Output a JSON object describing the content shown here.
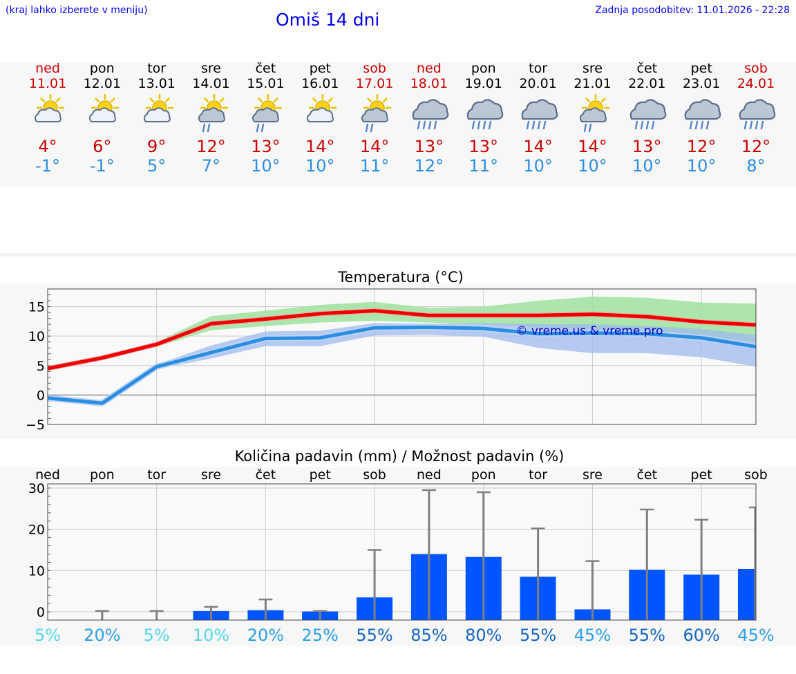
{
  "header": {
    "menu_hint": "(kraj lahko izberete v meniju)",
    "title": "Omiš 14 dni",
    "updated": "Zadnja posodobitev: 11.01.2026 - 22:28"
  },
  "colors": {
    "link": "#0000ee",
    "max_temp": "#cc0000",
    "min_temp": "#2b8de0",
    "max_band": "#9fe39f",
    "min_band": "#9fb9ee",
    "bar": "#0055ff",
    "whisker": "#808080"
  },
  "days": [
    {
      "name": "ned",
      "date": "11.01",
      "weekend": true,
      "icon": "sun-cloud-icon",
      "max": "4°",
      "min": "-1°"
    },
    {
      "name": "pon",
      "date": "12.01",
      "weekend": false,
      "icon": "sun-cloud-icon",
      "max": "6°",
      "min": "-1°"
    },
    {
      "name": "tor",
      "date": "13.01",
      "weekend": false,
      "icon": "sun-cloud-icon",
      "max": "9°",
      "min": "5°"
    },
    {
      "name": "sre",
      "date": "14.01",
      "weekend": false,
      "icon": "sun-cloud-rain-icon",
      "max": "12°",
      "min": "7°"
    },
    {
      "name": "čet",
      "date": "15.01",
      "weekend": false,
      "icon": "sun-cloud-rain-icon",
      "max": "13°",
      "min": "10°"
    },
    {
      "name": "pet",
      "date": "16.01",
      "weekend": false,
      "icon": "sun-cloud-icon",
      "max": "14°",
      "min": "10°"
    },
    {
      "name": "sob",
      "date": "17.01",
      "weekend": true,
      "icon": "sun-cloud-rain-icon",
      "max": "14°",
      "min": "11°"
    },
    {
      "name": "ned",
      "date": "18.01",
      "weekend": true,
      "icon": "rain-cloud-icon",
      "max": "13°",
      "min": "12°"
    },
    {
      "name": "pon",
      "date": "19.01",
      "weekend": false,
      "icon": "rain-cloud-icon",
      "max": "13°",
      "min": "11°"
    },
    {
      "name": "tor",
      "date": "20.01",
      "weekend": false,
      "icon": "rain-cloud-icon",
      "max": "14°",
      "min": "10°"
    },
    {
      "name": "sre",
      "date": "21.01",
      "weekend": false,
      "icon": "sun-cloud-rain-icon",
      "max": "14°",
      "min": "10°"
    },
    {
      "name": "čet",
      "date": "22.01",
      "weekend": false,
      "icon": "rain-cloud-icon",
      "max": "13°",
      "min": "10°"
    },
    {
      "name": "pet",
      "date": "23.01",
      "weekend": false,
      "icon": "rain-cloud-icon",
      "max": "12°",
      "min": "10°"
    },
    {
      "name": "sob",
      "date": "24.01",
      "weekend": true,
      "icon": "rain-cloud-icon",
      "max": "12°",
      "min": "8°"
    }
  ],
  "chart_data": [
    {
      "type": "line",
      "title": "Temperatura (°C)",
      "watermark": "© vreme.us & vreme.pro",
      "x": [
        "11.01",
        "12.01",
        "13.01",
        "14.01",
        "15.01",
        "16.01",
        "17.01",
        "18.01",
        "19.01",
        "20.01",
        "21.01",
        "22.01",
        "23.01",
        "24.01"
      ],
      "ylim": [
        -5,
        18
      ],
      "yticks": [
        -5,
        0,
        5,
        10,
        15
      ],
      "grid": true,
      "series": [
        {
          "name": "max",
          "values": [
            4.5,
            6.3,
            8.6,
            12.1,
            12.9,
            13.8,
            14.3,
            13.5,
            13.5,
            13.5,
            13.7,
            13.3,
            12.4,
            11.9
          ],
          "band_low": [
            4.2,
            6.0,
            8.2,
            11.0,
            11.7,
            12.3,
            12.6,
            12.3,
            12.0,
            11.5,
            11.2,
            10.8,
            9.8,
            9.0
          ],
          "band_high": [
            4.8,
            6.6,
            9.0,
            13.4,
            14.3,
            15.3,
            15.8,
            14.8,
            15.0,
            16.0,
            16.7,
            16.5,
            15.7,
            15.5
          ]
        },
        {
          "name": "min",
          "values": [
            -0.5,
            -1.4,
            4.8,
            7.2,
            9.6,
            9.7,
            11.4,
            11.5,
            11.3,
            10.4,
            10.5,
            10.4,
            9.7,
            8.2
          ],
          "band_low": [
            -0.9,
            -1.8,
            4.4,
            6.2,
            8.3,
            8.3,
            10.1,
            10.2,
            9.9,
            8.0,
            7.1,
            7.1,
            6.4,
            4.8
          ],
          "band_high": [
            -0.1,
            -1.0,
            5.2,
            8.4,
            10.8,
            10.9,
            12.2,
            12.1,
            12.2,
            12.0,
            12.0,
            11.7,
            11.2,
            10.2
          ]
        }
      ]
    },
    {
      "type": "bar",
      "title": "Količina padavin (mm) / Možnost padavin (%)",
      "categories": [
        "ned",
        "pon",
        "tor",
        "sre",
        "čet",
        "pet",
        "sob",
        "ned",
        "pon",
        "tor",
        "sre",
        "čet",
        "pet",
        "sob"
      ],
      "values": [
        0.0,
        0.0,
        0.0,
        0.2,
        0.4,
        0.1,
        3.5,
        14.0,
        13.3,
        8.5,
        0.6,
        10.2,
        9.0,
        10.4
      ],
      "whisker_high": [
        0.0,
        0.2,
        0.2,
        1.2,
        3.0,
        0.2,
        15.0,
        29.5,
        29.0,
        20.2,
        12.3,
        24.8,
        22.3,
        25.3
      ],
      "probability": [
        "5%",
        "20%",
        "5%",
        "10%",
        "20%",
        "25%",
        "55%",
        "85%",
        "80%",
        "55%",
        "45%",
        "55%",
        "60%",
        "45%"
      ],
      "probability_colors": [
        "#55d6ea",
        "#2e9fe6",
        "#55d6ea",
        "#55d6ea",
        "#2e9fe6",
        "#2e9fe6",
        "#1566c4",
        "#1566c4",
        "#1566c4",
        "#1566c4",
        "#2e9fe6",
        "#1566c4",
        "#1566c4",
        "#2e9fe6"
      ],
      "ylim": [
        -2,
        31
      ],
      "yticks": [
        0,
        10,
        20,
        30
      ],
      "grid": true
    }
  ]
}
